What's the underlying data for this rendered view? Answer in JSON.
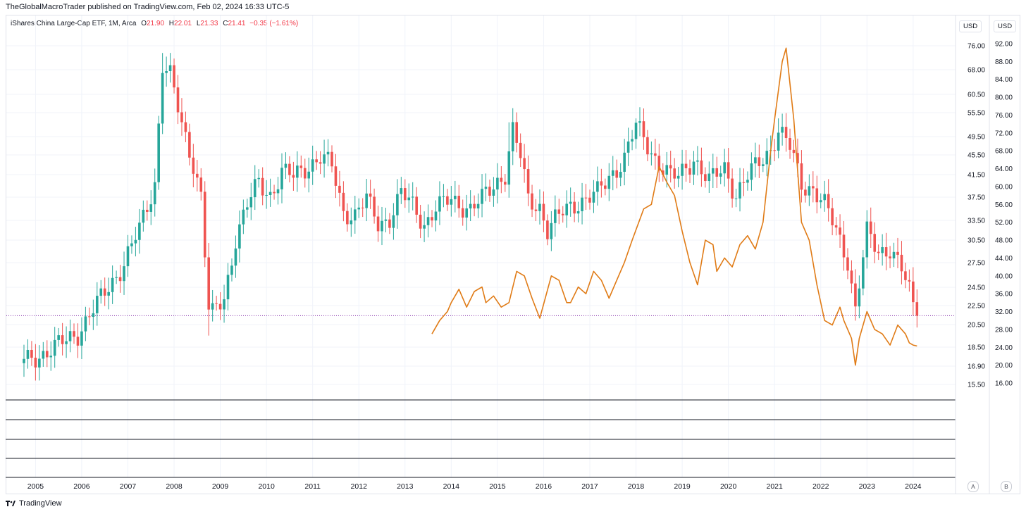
{
  "header": {
    "publisher": "TheGlobalMacroTrader published on TradingView.com, Feb 02, 2024 16:33 UTC-5"
  },
  "legend": {
    "symbol": "iShares China Large-Cap ETF, 1M, Arca",
    "o_label": "O",
    "o": "21.90",
    "h_label": "H",
    "h": "22.01",
    "l_label": "L",
    "l": "21.33",
    "c_label": "C",
    "c": "21.41",
    "change": "−0.35 (−1.61%)"
  },
  "axes": {
    "left_badge": "USD",
    "right_badge": "USD",
    "left_ticks": [
      76,
      68,
      60.5,
      55.5,
      49.5,
      45.5,
      41.5,
      37.5,
      33.5,
      30.5,
      27.5,
      24.5,
      22.5,
      20.5,
      18.5,
      16.9,
      15.5
    ],
    "left_tick_labels": [
      "76.00",
      "68.00",
      "60.50",
      "55.50",
      "49.50",
      "45.50",
      "41.50",
      "37.50",
      "33.50",
      "30.50",
      "27.50",
      "24.50",
      "22.50",
      "20.50",
      "18.50",
      "16.90",
      "15.50"
    ],
    "right_ticks": [
      92,
      88,
      84,
      80,
      76,
      72,
      68,
      64,
      60,
      56,
      52,
      48,
      44,
      40,
      36,
      32,
      28,
      24,
      20,
      16
    ],
    "right_tick_labels": [
      "92.00",
      "88.00",
      "84.00",
      "80.00",
      "76.00",
      "72.00",
      "68.00",
      "64.00",
      "60.00",
      "56.00",
      "52.00",
      "48.00",
      "44.00",
      "40.00",
      "36.00",
      "32.00",
      "28.00",
      "24.00",
      "20.00",
      "16.00"
    ],
    "x_years": [
      "2005",
      "2006",
      "2007",
      "2008",
      "2009",
      "2010",
      "2011",
      "2012",
      "2013",
      "2014",
      "2015",
      "2016",
      "2017",
      "2018",
      "2019",
      "2020",
      "2021",
      "2022",
      "2023",
      "2024"
    ],
    "scale_buttons": [
      "A",
      "B"
    ],
    "left_scale": "log"
  },
  "colors": {
    "up": "#26a69a",
    "down": "#ef5350",
    "overlay": "#e07b16",
    "last_price_line": "#7b1fa2",
    "grid": "#f0f3fa"
  },
  "footer": {
    "brand": "TradingView"
  },
  "chart_data": {
    "type": "line",
    "x_range": [
      "2004-10",
      "2024-02"
    ],
    "series": [
      {
        "type": "candlestick",
        "price_scale": "left",
        "anchors_close": [
          [
            "2004-10",
            17.3
          ],
          [
            "2005-06",
            18.4
          ],
          [
            "2005-12",
            19.8
          ],
          [
            "2006-06",
            23.2
          ],
          [
            "2006-12",
            27.5
          ],
          [
            "2007-04",
            32
          ],
          [
            "2007-08",
            40
          ],
          [
            "2007-10",
            70
          ],
          [
            "2007-12",
            66
          ],
          [
            "2008-03",
            52
          ],
          [
            "2008-06",
            44
          ],
          [
            "2008-08",
            38
          ],
          [
            "2008-10",
            22
          ],
          [
            "2008-11",
            21.5
          ],
          [
            "2009-02",
            23.2
          ],
          [
            "2009-05",
            31
          ],
          [
            "2009-08",
            36
          ],
          [
            "2009-11",
            40
          ],
          [
            "2010-02",
            38
          ],
          [
            "2010-05",
            42
          ],
          [
            "2010-08",
            41
          ],
          [
            "2010-11",
            43
          ],
          [
            "2011-03",
            45
          ],
          [
            "2011-06",
            43
          ],
          [
            "2011-09",
            35
          ],
          [
            "2011-12",
            34.5
          ],
          [
            "2012-03",
            37
          ],
          [
            "2012-06",
            33
          ],
          [
            "2012-09",
            34
          ],
          [
            "2012-12",
            38
          ],
          [
            "2013-03",
            36
          ],
          [
            "2013-06",
            33
          ],
          [
            "2013-09",
            35.5
          ],
          [
            "2014-01",
            37
          ],
          [
            "2014-06",
            35.5
          ],
          [
            "2014-09",
            37
          ],
          [
            "2014-12",
            39.5
          ],
          [
            "2015-03",
            42
          ],
          [
            "2015-05",
            51
          ],
          [
            "2015-07",
            45
          ],
          [
            "2015-09",
            37
          ],
          [
            "2015-12",
            36
          ],
          [
            "2016-02",
            32
          ],
          [
            "2016-04",
            33.5
          ],
          [
            "2016-08",
            36
          ],
          [
            "2016-11",
            37
          ],
          [
            "2017-03",
            38
          ],
          [
            "2017-06",
            41
          ],
          [
            "2017-10",
            45
          ],
          [
            "2018-01",
            52
          ],
          [
            "2018-06",
            45
          ],
          [
            "2018-10",
            41
          ],
          [
            "2018-12",
            41
          ],
          [
            "2019-04",
            45
          ],
          [
            "2019-08",
            40
          ],
          [
            "2019-12",
            43
          ],
          [
            "2020-03",
            38
          ],
          [
            "2020-06",
            41
          ],
          [
            "2020-09",
            44
          ],
          [
            "2020-12",
            47
          ],
          [
            "2021-02",
            51
          ],
          [
            "2021-05",
            47
          ],
          [
            "2021-08",
            40
          ],
          [
            "2021-11",
            39
          ],
          [
            "2022-02",
            36
          ],
          [
            "2022-05",
            32
          ],
          [
            "2022-08",
            28
          ],
          [
            "2022-10",
            22
          ],
          [
            "2022-12",
            28
          ],
          [
            "2023-01",
            31.5
          ],
          [
            "2023-04",
            29
          ],
          [
            "2023-07",
            29.5
          ],
          [
            "2023-10",
            26.5
          ],
          [
            "2023-12",
            24
          ],
          [
            "2024-01",
            22.5
          ],
          [
            "2024-02",
            21.41
          ]
        ],
        "notable_highs": [
          [
            "2007-10",
            73.5
          ],
          [
            "2015-04",
            53
          ],
          [
            "2018-01",
            54
          ],
          [
            "2021-02",
            54
          ]
        ],
        "notable_lows": [
          [
            "2008-10",
            19.5
          ],
          [
            "2022-10",
            20.9
          ]
        ],
        "last": 21.41
      },
      {
        "type": "line",
        "price_scale": "right",
        "points": [
          [
            "2013-08",
            27
          ],
          [
            "2013-10",
            30
          ],
          [
            "2013-12",
            32
          ],
          [
            "2014-01",
            34
          ],
          [
            "2014-03",
            37
          ],
          [
            "2014-05",
            33
          ],
          [
            "2014-07",
            36.5
          ],
          [
            "2014-09",
            37.5
          ],
          [
            "2014-10",
            34
          ],
          [
            "2014-12",
            35.5
          ],
          [
            "2015-02",
            33
          ],
          [
            "2015-04",
            34
          ],
          [
            "2015-06",
            41
          ],
          [
            "2015-08",
            40
          ],
          [
            "2015-10",
            35
          ],
          [
            "2015-12",
            30.5
          ],
          [
            "2016-03",
            40
          ],
          [
            "2016-05",
            39
          ],
          [
            "2016-07",
            34
          ],
          [
            "2016-08",
            34
          ],
          [
            "2016-10",
            37.5
          ],
          [
            "2016-12",
            36
          ],
          [
            "2017-02",
            41
          ],
          [
            "2017-04",
            39
          ],
          [
            "2017-06",
            35
          ],
          [
            "2017-08",
            39
          ],
          [
            "2017-10",
            43
          ],
          [
            "2017-12",
            48
          ],
          [
            "2018-03",
            55
          ],
          [
            "2018-05",
            56
          ],
          [
            "2018-07",
            64.5
          ],
          [
            "2018-09",
            61
          ],
          [
            "2018-11",
            58
          ],
          [
            "2019-01",
            50
          ],
          [
            "2019-03",
            43
          ],
          [
            "2019-05",
            38
          ],
          [
            "2019-07",
            48
          ],
          [
            "2019-09",
            47
          ],
          [
            "2019-10",
            41
          ],
          [
            "2019-12",
            44
          ],
          [
            "2020-02",
            42
          ],
          [
            "2020-04",
            47
          ],
          [
            "2020-06",
            49
          ],
          [
            "2020-08",
            46
          ],
          [
            "2020-10",
            52
          ],
          [
            "2020-12",
            68
          ],
          [
            "2021-01",
            75
          ],
          [
            "2021-03",
            88
          ],
          [
            "2021-04",
            91
          ],
          [
            "2021-06",
            75
          ],
          [
            "2021-08",
            52
          ],
          [
            "2021-10",
            48
          ],
          [
            "2021-12",
            38
          ],
          [
            "2022-02",
            30
          ],
          [
            "2022-04",
            29
          ],
          [
            "2022-06",
            33
          ],
          [
            "2022-07",
            30
          ],
          [
            "2022-09",
            26
          ],
          [
            "2022-10",
            20
          ],
          [
            "2022-11",
            26
          ],
          [
            "2023-01",
            32
          ],
          [
            "2023-03",
            28
          ],
          [
            "2023-05",
            27
          ],
          [
            "2023-07",
            24.5
          ],
          [
            "2023-09",
            29
          ],
          [
            "2023-11",
            27
          ],
          [
            "2023-12",
            25
          ],
          [
            "2024-01",
            24.5
          ],
          [
            "2024-02",
            24.3
          ]
        ]
      }
    ]
  }
}
